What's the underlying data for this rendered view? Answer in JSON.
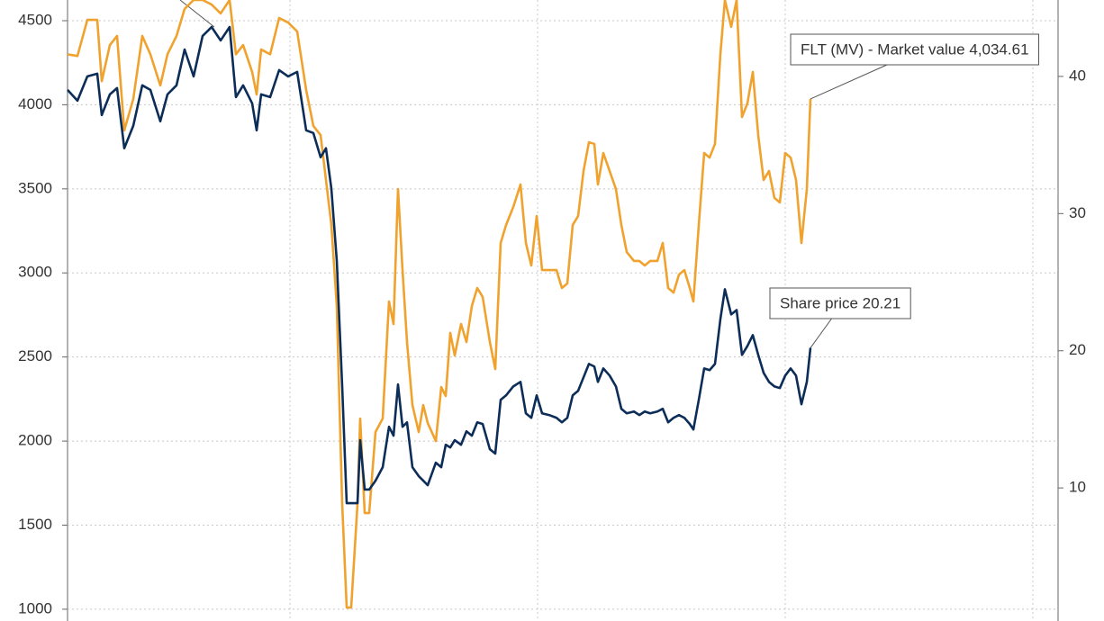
{
  "chart_data": {
    "type": "line",
    "x": [
      0,
      11,
      22,
      33,
      38,
      47,
      55,
      63,
      73,
      83,
      92,
      103,
      111,
      121,
      130,
      140,
      150,
      160,
      170,
      180,
      187,
      195,
      205,
      210,
      215,
      225,
      235,
      245,
      255,
      265,
      273,
      281,
      287,
      293,
      299,
      305,
      310,
      315,
      322,
      325,
      330,
      335,
      342,
      350,
      357,
      362,
      367,
      372,
      377,
      383,
      390,
      395,
      400,
      409,
      415,
      420,
      425,
      430,
      437,
      443,
      449,
      455,
      461,
      469,
      475,
      481,
      487,
      495,
      503,
      509,
      515,
      521,
      527,
      535,
      543,
      549,
      555,
      561,
      567,
      573,
      579,
      585,
      589,
      595,
      602,
      609,
      615,
      621,
      629,
      635,
      641,
      647,
      655,
      661,
      667,
      673,
      679,
      685,
      691,
      695,
      701,
      707,
      713,
      719,
      725,
      730,
      737,
      743,
      749,
      755,
      761,
      767,
      773,
      779,
      785,
      791,
      797,
      803,
      809,
      815,
      821,
      825
    ],
    "xlim": [
      0,
      1100
    ],
    "xticks": [
      247,
      522,
      797,
      1072
    ],
    "ylim": [
      930,
      4623
    ],
    "yticks": [
      1000,
      1500,
      2000,
      2500,
      3000,
      3500,
      4000,
      4500
    ],
    "y2lim": [
      0.3,
      45.57
    ],
    "y2ticks": [
      10,
      20,
      30,
      40
    ],
    "grid": true,
    "series": [
      {
        "color": "#f0a22e",
        "values": [
          4300,
          4290,
          4505,
          4505,
          4140,
          4355,
          4409,
          3847,
          4034,
          4409,
          4300,
          4115,
          4300,
          4409,
          4570,
          4623,
          4623,
          4596,
          4543,
          4623,
          4300,
          4355,
          4195,
          4061,
          4329,
          4300,
          4516,
          4489,
          4436,
          4088,
          3874,
          3820,
          3553,
          3285,
          2803,
          1626,
          1010,
          1010,
          1626,
          2134,
          1572,
          1572,
          2054,
          2134,
          2830,
          2696,
          3499,
          3017,
          2589,
          2214,
          2054,
          2214,
          2107,
          2000,
          2321,
          2268,
          2643,
          2509,
          2696,
          2589,
          2803,
          2910,
          2857,
          2589,
          2428,
          3178,
          3285,
          3392,
          3526,
          3178,
          3044,
          3338,
          3017,
          3017,
          3017,
          2910,
          2937,
          3285,
          3338,
          3606,
          3777,
          3767,
          3526,
          3713,
          3606,
          3499,
          3285,
          3124,
          3071,
          3071,
          3044,
          3071,
          3071,
          3178,
          2910,
          2883,
          2990,
          3017,
          2910,
          2830,
          3285,
          3713,
          3686,
          3767,
          4302,
          4623,
          4463,
          4623,
          3927,
          4008,
          4195,
          3820,
          3553,
          3606,
          3446,
          3419,
          3713,
          3686,
          3553,
          3178,
          3499,
          4034.61
        ]
      },
      {
        "color": "#0c2d57",
        "axis": "y2",
        "values": [
          39.02,
          38.23,
          40,
          40.2,
          37.18,
          38.69,
          39.15,
          34.76,
          36.4,
          39.35,
          39.02,
          36.73,
          38.69,
          39.35,
          41.96,
          40,
          42.95,
          43.6,
          42.62,
          43.6,
          38.49,
          39.35,
          38.04,
          36.07,
          38.69,
          38.49,
          40.46,
          40,
          40.33,
          36.07,
          35.87,
          34.11,
          34.76,
          31.81,
          26.57,
          17.4,
          8.89,
          8.89,
          8.89,
          13.48,
          9.88,
          9.88,
          10.53,
          11.51,
          14.46,
          13.81,
          17.54,
          14.46,
          14.78,
          11.51,
          10.86,
          10.53,
          10.2,
          11.84,
          11.51,
          13.15,
          12.95,
          13.48,
          13.15,
          14.13,
          13.81,
          14.78,
          14.66,
          12.82,
          12.5,
          16.42,
          16.75,
          17.4,
          17.73,
          15.44,
          15.11,
          16.75,
          15.44,
          15.31,
          15.11,
          14.78,
          15.11,
          16.75,
          17.08,
          18.06,
          19.04,
          18.85,
          17.73,
          18.71,
          18.19,
          17.4,
          15.77,
          15.44,
          15.57,
          15.31,
          15.57,
          15.44,
          15.57,
          15.77,
          14.78,
          15.11,
          15.31,
          15.11,
          14.66,
          14.26,
          16.42,
          18.71,
          18.59,
          19.04,
          22.32,
          24.48,
          22.65,
          22.97,
          19.7,
          20.35,
          21.14,
          19.7,
          18.39,
          17.73,
          17.4,
          17.28,
          18.19,
          18.71,
          18.19,
          16.1,
          17.73,
          20.21
        ]
      }
    ],
    "annotations": [
      "FLT (MV) - Market value 4,034.61",
      "Share price 20.21"
    ]
  }
}
